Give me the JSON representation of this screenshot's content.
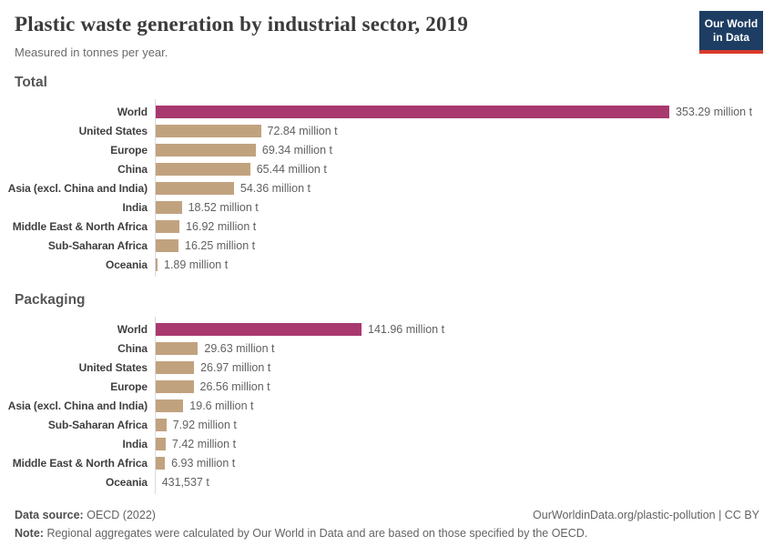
{
  "header": {
    "title": "Plastic waste generation by industrial sector, 2019",
    "subtitle": "Measured in tonnes per year.",
    "logo_line1": "Our World",
    "logo_line2": "in Data"
  },
  "colors": {
    "world_bar": "#a8386e",
    "region_bar": "#c1a27f",
    "logo_bg": "#1d3d63",
    "logo_stripe": "#d93a2b",
    "axis_line": "#dcdcdc"
  },
  "chart_data": [
    {
      "type": "bar",
      "title": "Total",
      "unit": "tonnes per year",
      "xlim": [
        0,
        353.29
      ],
      "rows": [
        {
          "entity": "World",
          "value_million_t": 353.29,
          "label": "353.29 million t",
          "highlight": true
        },
        {
          "entity": "United States",
          "value_million_t": 72.84,
          "label": "72.84 million t",
          "highlight": false
        },
        {
          "entity": "Europe",
          "value_million_t": 69.34,
          "label": "69.34 million t",
          "highlight": false
        },
        {
          "entity": "China",
          "value_million_t": 65.44,
          "label": "65.44 million t",
          "highlight": false
        },
        {
          "entity": "Asia (excl. China and India)",
          "value_million_t": 54.36,
          "label": "54.36 million t",
          "highlight": false
        },
        {
          "entity": "India",
          "value_million_t": 18.52,
          "label": "18.52 million t",
          "highlight": false
        },
        {
          "entity": "Middle East & North Africa",
          "value_million_t": 16.92,
          "label": "16.92 million t",
          "highlight": false
        },
        {
          "entity": "Sub-Saharan Africa",
          "value_million_t": 16.25,
          "label": "16.25 million t",
          "highlight": false
        },
        {
          "entity": "Oceania",
          "value_million_t": 1.89,
          "label": "1.89 million t",
          "highlight": false
        }
      ]
    },
    {
      "type": "bar",
      "title": "Packaging",
      "unit": "tonnes per year",
      "xlim": [
        0,
        353.29
      ],
      "rows": [
        {
          "entity": "World",
          "value_million_t": 141.96,
          "label": "141.96 million t",
          "highlight": true
        },
        {
          "entity": "China",
          "value_million_t": 29.63,
          "label": "29.63 million t",
          "highlight": false
        },
        {
          "entity": "United States",
          "value_million_t": 26.97,
          "label": "26.97 million t",
          "highlight": false
        },
        {
          "entity": "Europe",
          "value_million_t": 26.56,
          "label": "26.56 million t",
          "highlight": false
        },
        {
          "entity": "Asia (excl. China and India)",
          "value_million_t": 19.6,
          "label": "19.6 million t",
          "highlight": false
        },
        {
          "entity": "Sub-Saharan Africa",
          "value_million_t": 7.92,
          "label": "7.92 million t",
          "highlight": false
        },
        {
          "entity": "India",
          "value_million_t": 7.42,
          "label": "7.42 million t",
          "highlight": false
        },
        {
          "entity": "Middle East & North Africa",
          "value_million_t": 6.93,
          "label": "6.93 million t",
          "highlight": false
        },
        {
          "entity": "Oceania",
          "value_million_t": 0.431537,
          "label": "431,537 t",
          "highlight": false
        }
      ]
    }
  ],
  "footer": {
    "source_label": "Data source:",
    "source_value": "OECD (2022)",
    "credit": "OurWorldinData.org/plastic-pollution | CC BY",
    "note_label": "Note:",
    "note_value": "Regional aggregates were calculated by Our World in Data and are based on those specified by the OECD."
  }
}
